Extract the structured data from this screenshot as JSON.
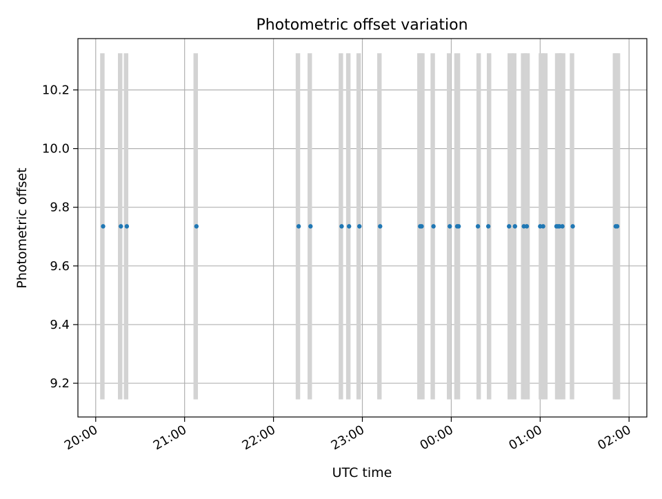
{
  "chart_data": {
    "type": "scatter",
    "title": "Photometric offset variation",
    "xlabel": "UTC time",
    "ylabel": "Photometric offset",
    "x_axis_kind": "time",
    "x_range": [
      "19:48",
      "02:12"
    ],
    "ylim": [
      9.085,
      10.375
    ],
    "x_ticks": [
      "20:00",
      "21:00",
      "22:00",
      "23:00",
      "00:00",
      "01:00",
      "02:00"
    ],
    "y_ticks": [
      9.2,
      9.4,
      9.6,
      9.8,
      10.0,
      10.2
    ],
    "y_tick_labels": [
      "9.2",
      "9.4",
      "9.6",
      "9.8",
      "10.0",
      "10.2"
    ],
    "grid": true,
    "legend": "none",
    "colors": {
      "points": "#1f77b4",
      "bands": "#d3d3d3",
      "grid": "#b0b0b0",
      "axes": "#000000"
    },
    "shaded_bands": {
      "y_range": [
        9.145,
        10.325
      ],
      "start_times": [
        "20:03",
        "20:15",
        "20:19",
        "21:06",
        "22:15",
        "22:23",
        "22:44",
        "22:49",
        "22:56",
        "23:10",
        "23:37",
        "23:38",
        "23:46",
        "23:57",
        "00:02",
        "00:17",
        "00:24",
        "00:38",
        "00:41",
        "00:47",
        "00:49",
        "00:59",
        "01:01",
        "01:10",
        "01:11",
        "01:13",
        "01:20",
        "01:49",
        "01:50"
      ],
      "end_times": [
        "20:06",
        "20:18",
        "20:22",
        "21:09",
        "22:18",
        "22:26",
        "22:47",
        "22:52",
        "22:59",
        "23:13",
        "23:41",
        "23:42",
        "23:49",
        "24:00",
        "00:06",
        "00:20",
        "00:27",
        "00:42",
        "00:44",
        "00:51",
        "00:53",
        "01:03",
        "01:05",
        "01:14",
        "01:15",
        "01:17",
        "01:23",
        "01:53",
        "01:54"
      ]
    },
    "series": [
      {
        "times": [
          "20:05",
          "20:17",
          "20:21",
          "21:08",
          "22:17",
          "22:25",
          "22:46",
          "22:51",
          "22:58",
          "23:12",
          "23:39",
          "23:40",
          "23:48",
          "23:59",
          "00:04",
          "00:05",
          "00:18",
          "00:25",
          "00:39",
          "00:43",
          "00:49",
          "00:51",
          "01:00",
          "01:02",
          "01:11",
          "01:12",
          "01:13",
          "01:15",
          "01:22",
          "01:51",
          "01:52"
        ],
        "values": [
          9.735,
          9.735,
          9.735,
          9.735,
          9.735,
          9.735,
          9.735,
          9.735,
          9.735,
          9.735,
          9.735,
          9.735,
          9.735,
          9.735,
          9.735,
          9.735,
          9.735,
          9.735,
          9.735,
          9.735,
          9.735,
          9.735,
          9.735,
          9.735,
          9.735,
          9.735,
          9.735,
          9.735,
          9.735,
          9.735,
          9.735
        ]
      }
    ]
  }
}
